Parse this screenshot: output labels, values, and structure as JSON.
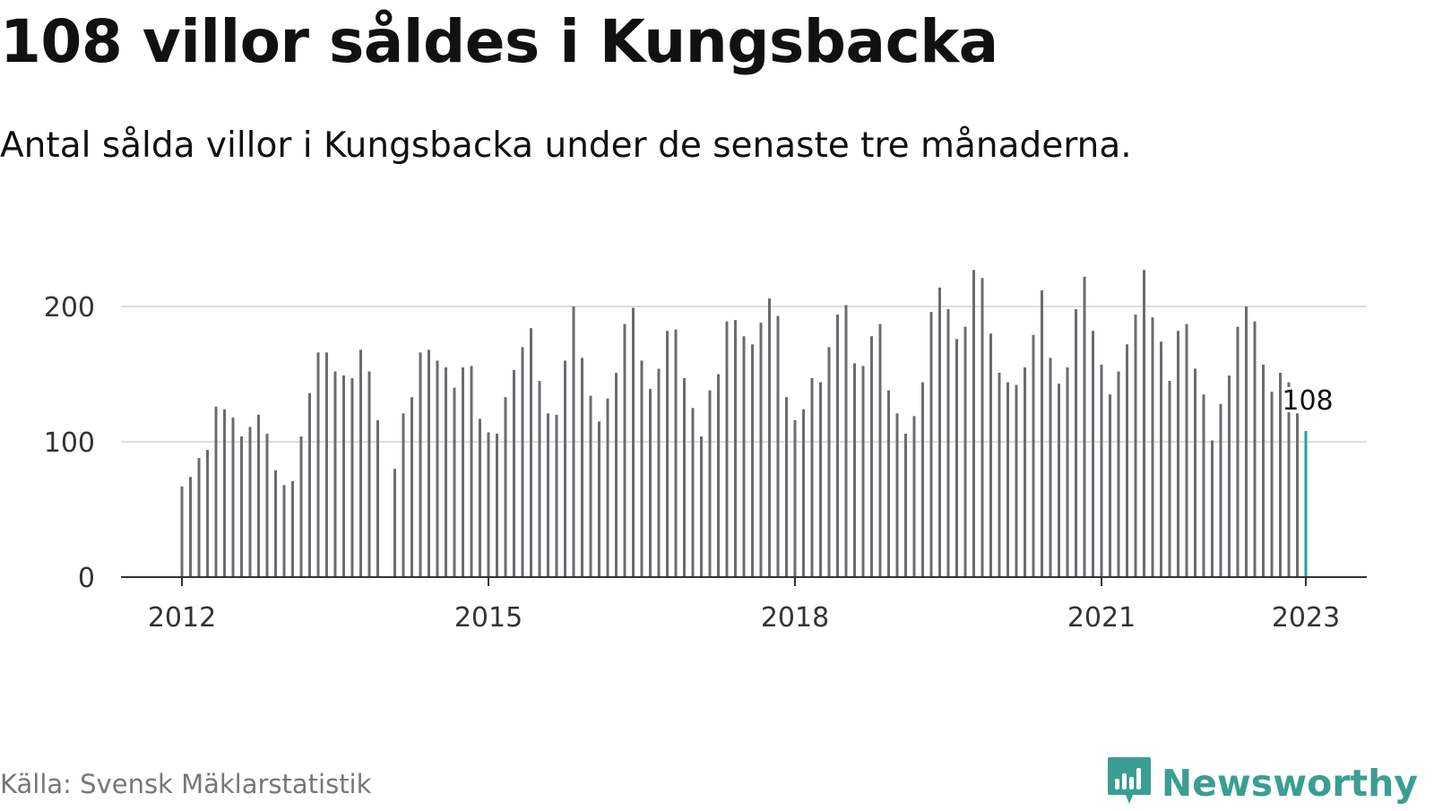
{
  "title": "108 villor såldes i Kungsbacka",
  "subtitle": "Antal sålda villor i Kungsbacka under de senaste tre månaderna.",
  "source": "Källa: Svensk Mäklarstatistik",
  "brand": {
    "name": "Newsworthy",
    "icon": "newsworthy-logo-icon"
  },
  "colors": {
    "bar": "#6b6b70",
    "highlight": "#1ea297",
    "grid": "#dddddd",
    "axis": "#333333"
  },
  "chart_data": {
    "type": "bar",
    "title": "108 villor såldes i Kungsbacka",
    "xlabel": "",
    "ylabel": "",
    "ylim": [
      0,
      230
    ],
    "yticks": [
      "0",
      "100",
      "200"
    ],
    "xticks": [
      "2012",
      "2015",
      "2018",
      "2021",
      "2023"
    ],
    "grid": true,
    "x": [
      "2012-01",
      "2012-02",
      "2012-03",
      "2012-04",
      "2012-05",
      "2012-06",
      "2012-07",
      "2012-08",
      "2012-09",
      "2012-10",
      "2012-11",
      "2012-12",
      "2013-01",
      "2013-02",
      "2013-03",
      "2013-04",
      "2013-05",
      "2013-06",
      "2013-07",
      "2013-08",
      "2013-09",
      "2013-10",
      "2013-11",
      "2013-12",
      "2014-01",
      "2014-02",
      "2014-03",
      "2014-04",
      "2014-05",
      "2014-06",
      "2014-07",
      "2014-08",
      "2014-09",
      "2014-10",
      "2014-11",
      "2014-12",
      "2015-01",
      "2015-02",
      "2015-03",
      "2015-04",
      "2015-05",
      "2015-06",
      "2015-07",
      "2015-08",
      "2015-09",
      "2015-10",
      "2015-11",
      "2015-12",
      "2016-01",
      "2016-02",
      "2016-03",
      "2016-04",
      "2016-05",
      "2016-06",
      "2016-07",
      "2016-08",
      "2016-09",
      "2016-10",
      "2016-11",
      "2016-12",
      "2017-01",
      "2017-02",
      "2017-03",
      "2017-04",
      "2017-05",
      "2017-06",
      "2017-07",
      "2017-08",
      "2017-09",
      "2017-10",
      "2017-11",
      "2017-12",
      "2018-01",
      "2018-02",
      "2018-03",
      "2018-04",
      "2018-05",
      "2018-06",
      "2018-07",
      "2018-08",
      "2018-09",
      "2018-10",
      "2018-11",
      "2018-12",
      "2019-01",
      "2019-02",
      "2019-03",
      "2019-04",
      "2019-05",
      "2019-06",
      "2019-07",
      "2019-08",
      "2019-09",
      "2019-10",
      "2019-11",
      "2019-12",
      "2020-01",
      "2020-02",
      "2020-03",
      "2020-04",
      "2020-05",
      "2020-06",
      "2020-07",
      "2020-08",
      "2020-09",
      "2020-10",
      "2020-11",
      "2020-12",
      "2021-01",
      "2021-02",
      "2021-03",
      "2021-04",
      "2021-05",
      "2021-06",
      "2021-07",
      "2021-08",
      "2021-09",
      "2021-10",
      "2021-11",
      "2021-12",
      "2022-01",
      "2022-02",
      "2022-03",
      "2022-04",
      "2022-05",
      "2022-06",
      "2022-07",
      "2022-08",
      "2022-09",
      "2022-10",
      "2022-11",
      "2022-12",
      "2023-01"
    ],
    "values": [
      67,
      74,
      88,
      94,
      126,
      124,
      118,
      104,
      111,
      120,
      106,
      79,
      68,
      71,
      104,
      136,
      166,
      166,
      152,
      149,
      147,
      168,
      152,
      116,
      null,
      80,
      121,
      133,
      166,
      168,
      160,
      155,
      140,
      155,
      156,
      117,
      107,
      106,
      133,
      153,
      170,
      184,
      145,
      121,
      120,
      160,
      200,
      162,
      134,
      115,
      132,
      151,
      187,
      199,
      160,
      139,
      154,
      182,
      183,
      147,
      125,
      104,
      138,
      150,
      189,
      190,
      178,
      172,
      188,
      206,
      193,
      133,
      116,
      124,
      147,
      144,
      170,
      194,
      201,
      158,
      156,
      178,
      187,
      138,
      121,
      106,
      119,
      144,
      196,
      214,
      198,
      176,
      185,
      227,
      221,
      180,
      151,
      144,
      142,
      155,
      179,
      212,
      162,
      143,
      155,
      198,
      222,
      182,
      157,
      135,
      152,
      172,
      194,
      227,
      192,
      174,
      145,
      182,
      187,
      154,
      135,
      101,
      128,
      149,
      185,
      200,
      189,
      157,
      137,
      151,
      144,
      121,
      108
    ],
    "highlight_index": 132,
    "highlight_label": "108"
  }
}
